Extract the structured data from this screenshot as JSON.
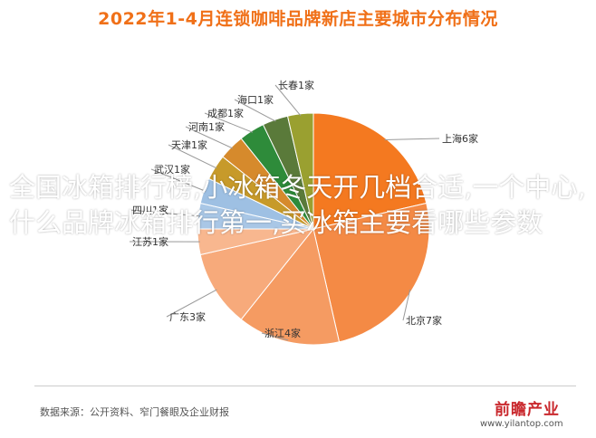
{
  "header": {
    "title": "2022年1-4月连锁咖啡品牌新店主要城市分布情况"
  },
  "overlay": {
    "text": "全国冰箱排行榜,小冰箱冬天开几档合适,一个中心,什么品牌冰箱排行第一,买冰箱主要看哪些参数"
  },
  "chart_data": {
    "type": "pie",
    "title": "2022年1-4月连锁咖啡品牌新店主要城市分布情况",
    "unit": "家",
    "slices": [
      {
        "name": "上海",
        "value": 6,
        "label": "上海6家",
        "color": "#f47920"
      },
      {
        "name": "北京",
        "value": 7,
        "label": "北京7家",
        "color": "#f48a45"
      },
      {
        "name": "浙江",
        "value": 4,
        "label": "浙江4家",
        "color": "#f59b62"
      },
      {
        "name": "广东",
        "value": 3,
        "label": "广东3家",
        "color": "#f7aa7b"
      },
      {
        "name": "江苏",
        "value": 1,
        "label": "江苏1家",
        "color": "#f8b78f"
      },
      {
        "name": "四川",
        "value": 1,
        "label": "四川1家",
        "color": "#a9c7e6"
      },
      {
        "name": "武汉",
        "value": 1,
        "label": "武汉1家",
        "color": "#9ec0e3"
      },
      {
        "name": "天津",
        "value": 1,
        "label": "天津1家",
        "color": "#c79a2a"
      },
      {
        "name": "河南",
        "value": 1,
        "label": "河南1家",
        "color": "#d68a2c"
      },
      {
        "name": "成都",
        "value": 1,
        "label": "成都1家",
        "color": "#2e8b3a"
      },
      {
        "name": "海口",
        "value": 1,
        "label": "海口1家",
        "color": "#5a7a3a"
      },
      {
        "name": "长春",
        "value": 1,
        "label": "长春1家",
        "color": "#9aa030"
      }
    ]
  },
  "footer": {
    "source": "数据来源：公开资料、窄门餐眼及企业财报",
    "logo": "前瞻产业",
    "url": "www.yilantop.com"
  }
}
